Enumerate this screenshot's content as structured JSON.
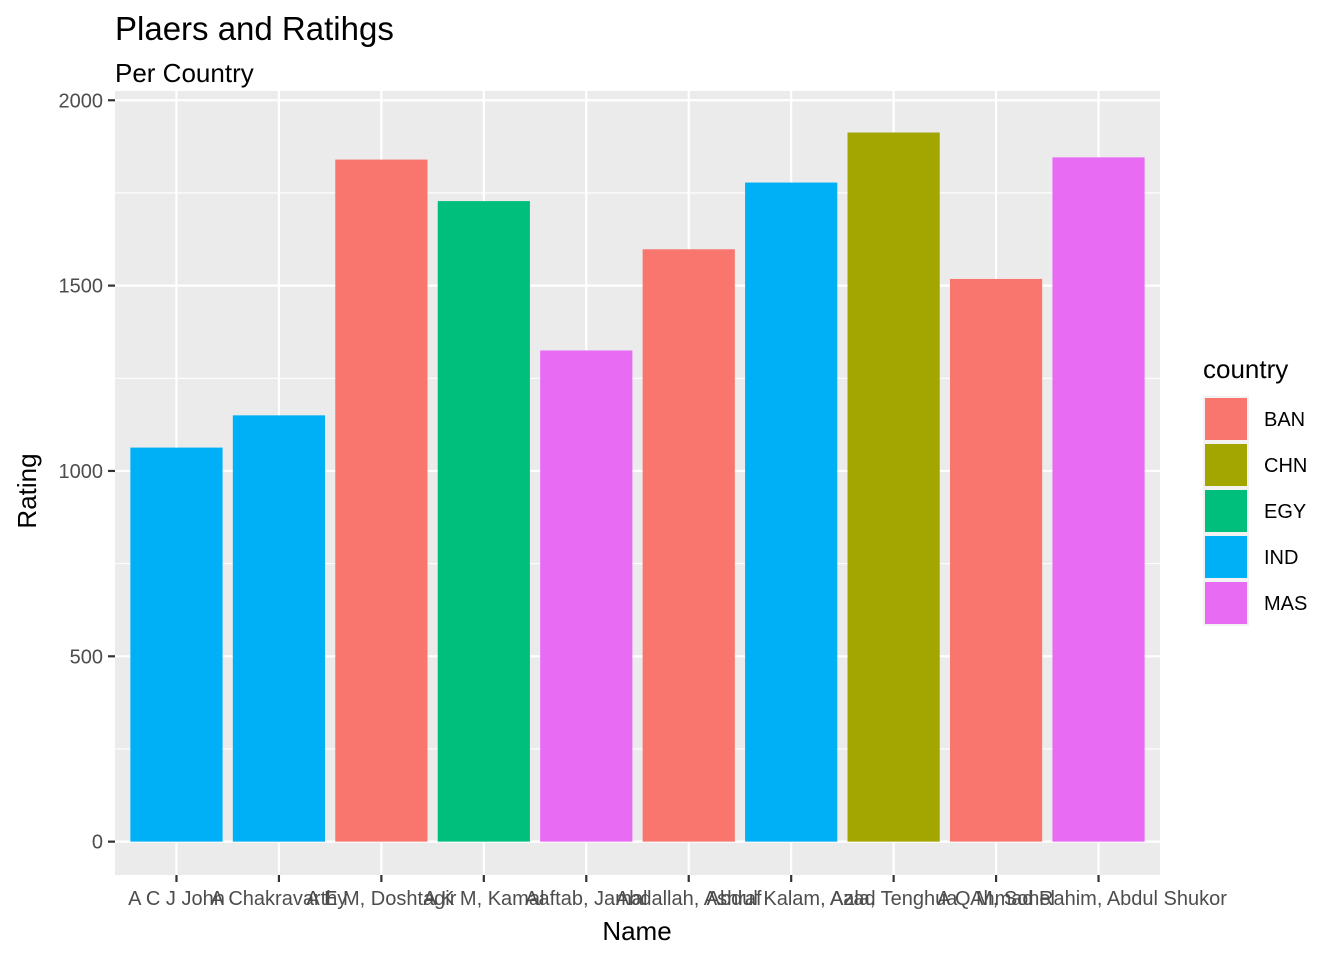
{
  "chart_data": {
    "type": "bar",
    "title": "Plaers and Ratihgs",
    "subtitle": "Per Country",
    "xlabel": "Name",
    "ylabel": "Rating",
    "ylim": [
      -90,
      2025
    ],
    "yticks": [
      0,
      500,
      1000,
      1500,
      2000
    ],
    "ytick_labels": [
      "0",
      "500",
      "1000",
      "1500",
      "2000"
    ],
    "grid": true,
    "categories": [
      "A C J John",
      "A Chakravarthy",
      "A E M, Doshtagir",
      "A K M, Kamal",
      "Aaftab, Jamal",
      "Abdallah, Ashraf",
      "Abdul Kalam, Azad",
      "Aala, Tenghua",
      "A Q M, Sohel",
      "Ahmad Rahim, Abdul Shukor"
    ],
    "values": [
      1063,
      1150,
      1840,
      1728,
      1325,
      1598,
      1778,
      1913,
      1518,
      1846
    ],
    "country": [
      "IND",
      "IND",
      "BAN",
      "EGY",
      "MAS",
      "BAN",
      "IND",
      "CHN",
      "BAN",
      "MAS"
    ],
    "legend": {
      "title": "country",
      "position": "right",
      "entries": [
        "BAN",
        "CHN",
        "EGY",
        "IND",
        "MAS"
      ],
      "colors": {
        "BAN": "#F8766D",
        "CHN": "#A3A500",
        "EGY": "#00BF7D",
        "IND": "#00B0F6",
        "MAS": "#E76BF3"
      }
    },
    "panel_background": "#EBEBEB",
    "grid_color": "#FFFFFF"
  }
}
